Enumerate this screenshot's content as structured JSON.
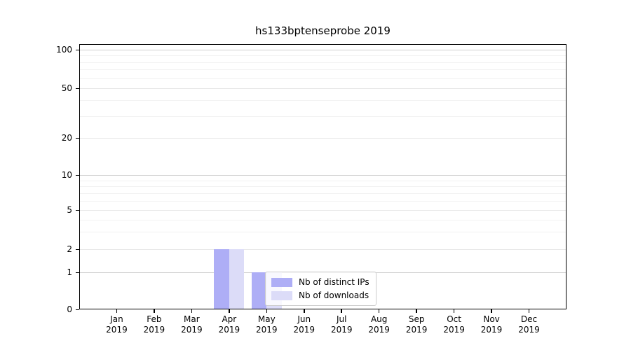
{
  "title": "hs133bptenseprobe 2019",
  "chart_data": {
    "type": "bar",
    "categories": [
      "Jan",
      "Feb",
      "Mar",
      "Apr",
      "May",
      "Jun",
      "Jul",
      "Aug",
      "Sep",
      "Oct",
      "Nov",
      "Dec"
    ],
    "category_year": "2019",
    "series": [
      {
        "name": "Nb of distinct IPs",
        "color": "#aeaef6",
        "values": [
          0,
          0,
          0,
          2,
          1,
          0,
          0,
          0,
          0,
          0,
          0,
          0
        ]
      },
      {
        "name": "Nb of downloads",
        "color": "#dcdcf8",
        "values": [
          0,
          0,
          0,
          2,
          1,
          0,
          0,
          0,
          0,
          0,
          0,
          0
        ]
      }
    ],
    "xlabel": "",
    "ylabel": "",
    "yscale": "symlog",
    "ylim": [
      0,
      110
    ],
    "y_ticks": [
      0,
      1,
      2,
      5,
      10,
      20,
      50,
      100
    ],
    "y_minor_ticks": [
      3,
      4,
      6,
      7,
      8,
      9,
      30,
      40,
      60,
      70,
      80,
      90
    ],
    "grid": true,
    "legend_position": "inside-lower-center"
  },
  "colors": {
    "axis": "#000000",
    "grid_decade": "#d0d0d0",
    "grid_major": "#e7e7e7",
    "grid_minor": "#f2f2f2",
    "legend_border": "#cccccc",
    "background": "#ffffff"
  }
}
